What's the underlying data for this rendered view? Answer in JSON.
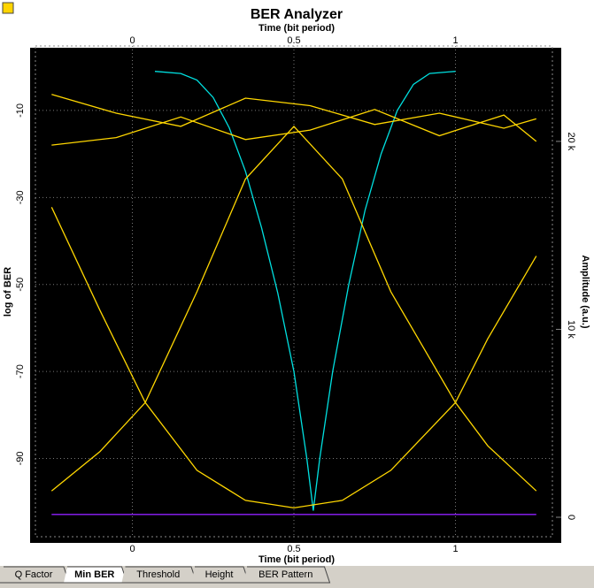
{
  "chart_data": {
    "type": "line",
    "title": "BER Analyzer",
    "xlabel_top": "Time (bit period)",
    "xlabel": "Time (bit period)",
    "ylabel": "log of BER",
    "y2label": "Amplitude (a.u.)",
    "xlim": [
      -0.3,
      1.3
    ],
    "xticks": [
      0,
      0.5,
      1
    ],
    "ylim": [
      -108,
      3.2
    ],
    "yticks": [
      -10,
      -30,
      -50,
      -70,
      -90
    ],
    "y2lim": [
      -1035,
      24700
    ],
    "y2ticks": [
      0,
      {
        "value": 10000,
        "label": "10 k"
      },
      {
        "value": 20000,
        "label": "20 k"
      }
    ],
    "grid": true,
    "series": [
      {
        "color": "#00e0e0",
        "x": [
          0.07,
          0.15,
          0.2,
          0.25,
          0.3,
          0.35,
          0.4,
          0.45,
          0.5,
          0.54,
          0.56,
          0.58,
          0.62,
          0.67,
          0.72,
          0.77,
          0.82,
          0.87,
          0.92,
          1.0
        ],
        "values": [
          -1,
          -1.5,
          -3,
          -7,
          -14,
          -24,
          -37,
          -52,
          -70,
          -90,
          -102,
          -90,
          -70,
          -50,
          -33,
          -20,
          -10,
          -4,
          -1.5,
          -1
        ]
      },
      {
        "color": "#ffd700",
        "axis": "y2",
        "x": [
          -0.25,
          -0.1,
          0.04,
          0.2,
          0.35,
          0.5,
          0.65,
          0.8,
          1.0,
          1.1,
          1.25
        ],
        "values": [
          16500,
          11000,
          6100,
          2500,
          900,
          500,
          900,
          2500,
          6100,
          9500,
          13900
        ]
      },
      {
        "color": "#ffd700",
        "axis": "y2",
        "x": [
          -0.25,
          -0.1,
          0.04,
          0.2,
          0.35,
          0.5,
          0.65,
          0.8,
          1.0,
          1.1,
          1.25
        ],
        "values": [
          1400,
          3500,
          6100,
          12000,
          18000,
          20800,
          18000,
          12000,
          6100,
          3800,
          1400
        ]
      },
      {
        "color": "#ffd700",
        "axis": "y2",
        "x": [
          -0.25,
          -0.05,
          0.15,
          0.35,
          0.55,
          0.75,
          0.95,
          1.15,
          1.25
        ],
        "values": [
          22500,
          21500,
          20800,
          22300,
          21900,
          20900,
          21500,
          20700,
          21200
        ]
      },
      {
        "color": "#ffd700",
        "axis": "y2",
        "x": [
          -0.25,
          -0.05,
          0.15,
          0.35,
          0.55,
          0.75,
          0.95,
          1.15,
          1.25
        ],
        "values": [
          19800,
          20200,
          21300,
          20100,
          20600,
          21700,
          20300,
          21400,
          20000
        ]
      },
      {
        "color": "#9020ff",
        "axis": "y2",
        "x": [
          -0.25,
          1.25
        ],
        "values": [
          150,
          150
        ]
      }
    ]
  },
  "tabs": [
    "Q Factor",
    "Min BER",
    "Threshold",
    "Height",
    "BER Pattern"
  ]
}
